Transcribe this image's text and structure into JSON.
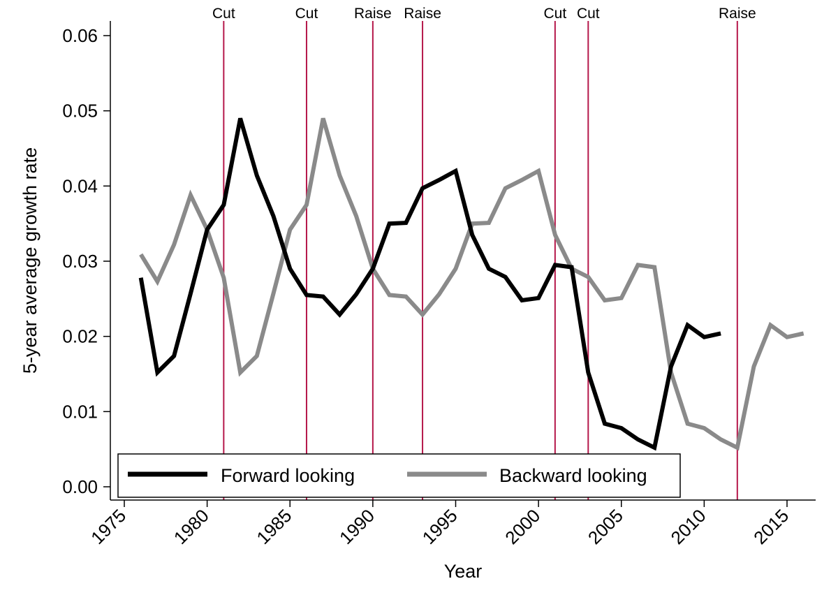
{
  "chart_data": {
    "type": "line",
    "title": "",
    "xlabel": "Year",
    "ylabel": "5-year average growth rate",
    "xlim": [
      1975,
      2016
    ],
    "ylim": [
      0,
      0.06
    ],
    "x_ticks": [
      1975,
      1980,
      1985,
      1990,
      1995,
      2000,
      2005,
      2010,
      2015
    ],
    "y_ticks": [
      0,
      0.01,
      0.02,
      0.03,
      0.04,
      0.05,
      0.06
    ],
    "y_tick_labels": [
      "0.00",
      "0.01",
      "0.02",
      "0.03",
      "0.04",
      "0.05",
      "0.06"
    ],
    "grid": false,
    "legend_position": "bottom-left",
    "series": [
      {
        "name": "Forward looking",
        "color": "#000000",
        "x": [
          1976,
          1977,
          1978,
          1979,
          1980,
          1981,
          1982,
          1983,
          1984,
          1985,
          1986,
          1987,
          1988,
          1989,
          1990,
          1991,
          1992,
          1993,
          1994,
          1995,
          1996,
          1997,
          1998,
          1999,
          2000,
          2001,
          2002,
          2003,
          2004,
          2005,
          2006,
          2007,
          2008,
          2009,
          2010,
          2011
        ],
        "y": [
          0.0278,
          0.0152,
          0.0174,
          0.0257,
          0.0342,
          0.0375,
          0.049,
          0.0414,
          0.036,
          0.029,
          0.0255,
          0.0253,
          0.0229,
          0.0256,
          0.029,
          0.035,
          0.0351,
          0.0397,
          0.0408,
          0.042,
          0.0335,
          0.029,
          0.0279,
          0.0248,
          0.0251,
          0.0295,
          0.0292,
          0.0152,
          0.0084,
          0.0078,
          0.0063,
          0.0052,
          0.016,
          0.0215,
          0.0199,
          0.0204
        ]
      },
      {
        "name": "Backward looking",
        "color": "#8a8a8a",
        "x": [
          1976,
          1977,
          1978,
          1979,
          1980,
          1981,
          1982,
          1983,
          1984,
          1985,
          1986,
          1987,
          1988,
          1989,
          1990,
          1991,
          1992,
          1993,
          1994,
          1995,
          1996,
          1997,
          1998,
          1999,
          2000,
          2001,
          2002,
          2003,
          2004,
          2005,
          2006,
          2007,
          2008,
          2009,
          2010,
          2011,
          2012,
          2013,
          2014,
          2015,
          2016
        ],
        "y": [
          0.0309,
          0.0273,
          0.0322,
          0.0388,
          0.0342,
          0.0278,
          0.0152,
          0.0174,
          0.0257,
          0.0342,
          0.0375,
          0.049,
          0.0414,
          0.036,
          0.029,
          0.0255,
          0.0253,
          0.0229,
          0.0256,
          0.029,
          0.035,
          0.0351,
          0.0397,
          0.0408,
          0.042,
          0.0335,
          0.029,
          0.0279,
          0.0248,
          0.0251,
          0.0295,
          0.0292,
          0.0152,
          0.0084,
          0.0078,
          0.0063,
          0.0052,
          0.016,
          0.0215,
          0.0199,
          0.0204
        ]
      }
    ],
    "event_lines": {
      "color": "#b5174a",
      "items": [
        {
          "x": 1981,
          "label": "Cut"
        },
        {
          "x": 1986,
          "label": "Cut"
        },
        {
          "x": 1990,
          "label": "Raise"
        },
        {
          "x": 1993,
          "label": "Raise"
        },
        {
          "x": 2001,
          "label": "Cut"
        },
        {
          "x": 2003,
          "label": "Cut"
        },
        {
          "x": 2012,
          "label": "Raise"
        }
      ]
    }
  }
}
